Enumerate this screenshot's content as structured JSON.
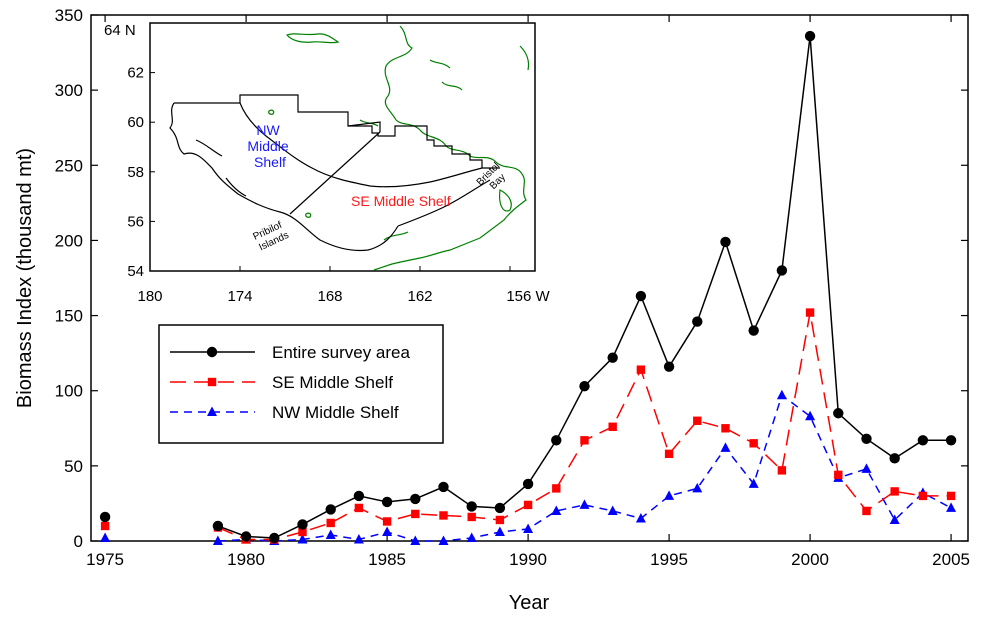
{
  "chart_data": {
    "type": "line",
    "xlabel": "Year",
    "ylabel": "Biomass Index (thousand mt)",
    "xlim": [
      1974.5,
      2005.6
    ],
    "ylim": [
      0,
      350
    ],
    "x_ticks": [
      "1975",
      "1980",
      "1985",
      "1990",
      "1995",
      "2000",
      "2005"
    ],
    "y_ticks": [
      "0",
      "50",
      "100",
      "150",
      "200",
      "250",
      "300",
      "350"
    ],
    "grid": false,
    "legend_position": "middle-left",
    "series": [
      {
        "name": "Entire survey area",
        "color": "#000000",
        "dash": "solid",
        "marker": "circle",
        "points": [
          [
            1975,
            16
          ],
          [
            1979,
            10
          ],
          [
            1980,
            3
          ],
          [
            1981,
            2
          ],
          [
            1982,
            11
          ],
          [
            1983,
            21
          ],
          [
            1984,
            30
          ],
          [
            1985,
            26
          ],
          [
            1986,
            28
          ],
          [
            1987,
            36
          ],
          [
            1988,
            23
          ],
          [
            1989,
            22
          ],
          [
            1990,
            38
          ],
          [
            1991,
            67
          ],
          [
            1992,
            103
          ],
          [
            1993,
            122
          ],
          [
            1994,
            163
          ],
          [
            1995,
            116
          ],
          [
            1996,
            146
          ],
          [
            1997,
            199
          ],
          [
            1998,
            140
          ],
          [
            1999,
            180
          ],
          [
            2000,
            336
          ],
          [
            2001,
            85
          ],
          [
            2002,
            68
          ],
          [
            2003,
            55
          ],
          [
            2004,
            67
          ],
          [
            2005,
            67
          ]
        ]
      },
      {
        "name": "SE Middle Shelf",
        "color": "#ff0000",
        "dash": "long-dash",
        "marker": "square",
        "points": [
          [
            1975,
            10
          ],
          [
            1979,
            9
          ],
          [
            1980,
            1
          ],
          [
            1981,
            1
          ],
          [
            1982,
            6
          ],
          [
            1983,
            12
          ],
          [
            1984,
            22
          ],
          [
            1985,
            13
          ],
          [
            1986,
            18
          ],
          [
            1987,
            17
          ],
          [
            1988,
            16
          ],
          [
            1989,
            14
          ],
          [
            1990,
            24
          ],
          [
            1991,
            35
          ],
          [
            1992,
            67
          ],
          [
            1993,
            76
          ],
          [
            1994,
            114
          ],
          [
            1995,
            58
          ],
          [
            1996,
            80
          ],
          [
            1997,
            75
          ],
          [
            1998,
            65
          ],
          [
            1999,
            47
          ],
          [
            2000,
            152
          ],
          [
            2001,
            44
          ],
          [
            2002,
            20
          ],
          [
            2003,
            33
          ],
          [
            2004,
            30
          ],
          [
            2005,
            30
          ]
        ]
      },
      {
        "name": "NW Middle Shelf",
        "color": "#0000ff",
        "dash": "short-dash",
        "marker": "triangle",
        "points": [
          [
            1975,
            2
          ],
          [
            1979,
            0
          ],
          [
            1980,
            1
          ],
          [
            1981,
            0
          ],
          [
            1982,
            1
          ],
          [
            1983,
            4
          ],
          [
            1984,
            1
          ],
          [
            1985,
            6
          ],
          [
            1986,
            0
          ],
          [
            1987,
            0
          ],
          [
            1988,
            2
          ],
          [
            1989,
            6
          ],
          [
            1990,
            8
          ],
          [
            1991,
            20
          ],
          [
            1992,
            24
          ],
          [
            1993,
            20
          ],
          [
            1994,
            15
          ],
          [
            1995,
            30
          ],
          [
            1996,
            35
          ],
          [
            1997,
            62
          ],
          [
            1998,
            38
          ],
          [
            1999,
            97
          ],
          [
            2000,
            83
          ],
          [
            2001,
            42
          ],
          [
            2002,
            48
          ],
          [
            2003,
            14
          ],
          [
            2004,
            32
          ],
          [
            2005,
            22
          ]
        ]
      }
    ]
  },
  "inset_map": {
    "lat_labels": [
      "64 N",
      "62",
      "60",
      "58",
      "56",
      "54"
    ],
    "lon_labels": [
      "180",
      "174",
      "168",
      "162",
      "156 W"
    ],
    "lon_values": [
      180,
      174,
      168,
      162,
      156
    ],
    "lat_values": [
      64,
      62,
      60,
      58,
      56,
      54
    ],
    "regions": [
      {
        "label_lines": [
          "NW",
          "Middle",
          "Shelf"
        ],
        "color": "#1a1aff"
      },
      {
        "label_lines": [
          "SE Middle Shelf"
        ],
        "color": "#ff1a1a"
      }
    ],
    "place_labels": [
      {
        "lines": [
          "Pribilof",
          "Islands"
        ]
      },
      {
        "lines": [
          "Bristol",
          "Bay"
        ]
      }
    ],
    "coast_color": "#008000"
  }
}
